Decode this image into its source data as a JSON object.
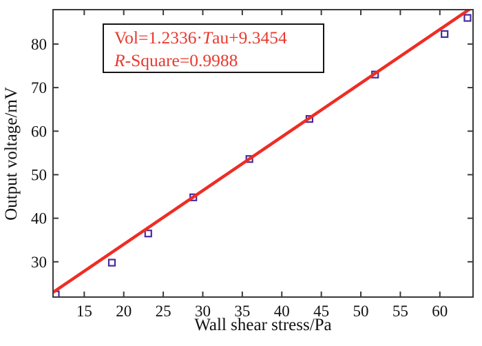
{
  "chart_data": {
    "type": "scatter",
    "title": "",
    "xlabel": "Wall shear stress/Pa",
    "ylabel": "Output voltage/mV",
    "xlim": [
      11.05,
      64.2
    ],
    "ylim": [
      21.9,
      87.9
    ],
    "xticks": [
      15,
      20,
      25,
      30,
      35,
      40,
      45,
      50,
      55,
      60
    ],
    "yticks": [
      30,
      40,
      50,
      60,
      70,
      80
    ],
    "grid": false,
    "legend": "none",
    "series": [
      {
        "name": "measured-points",
        "type": "scatter",
        "marker": "open-square",
        "color": "#472b9e",
        "points": [
          [
            11.4,
            22.5
          ],
          [
            18.5,
            29.8
          ],
          [
            23.1,
            36.5
          ],
          [
            28.8,
            44.8
          ],
          [
            35.9,
            53.6
          ],
          [
            43.5,
            62.8
          ],
          [
            51.8,
            73.0
          ],
          [
            60.6,
            82.3
          ],
          [
            63.5,
            86.0
          ]
        ]
      },
      {
        "name": "linear-fit",
        "type": "line",
        "color": "#ee2d24",
        "slope": 1.2336,
        "intercept": 9.3454
      }
    ],
    "annotation": {
      "equation_text": "Vol=1.2336·Tau+9.3454",
      "r_square_text": "R-Square=0.9988",
      "text_color": "#e8392e",
      "lines": [
        {
          "segments": [
            {
              "text": "Vol=1.2336·",
              "italic": false
            },
            {
              "text": "T",
              "italic": true
            },
            {
              "text": "au+9.3454",
              "italic": false
            }
          ]
        },
        {
          "segments": [
            {
              "text": "R",
              "italic": true
            },
            {
              "text": "-Square=0.9988",
              "italic": false
            }
          ]
        }
      ]
    },
    "colors": {
      "spine": "#3a3a3a",
      "tick_label": "#111111",
      "axis_label": "#111111",
      "background": "#ffffff"
    }
  }
}
